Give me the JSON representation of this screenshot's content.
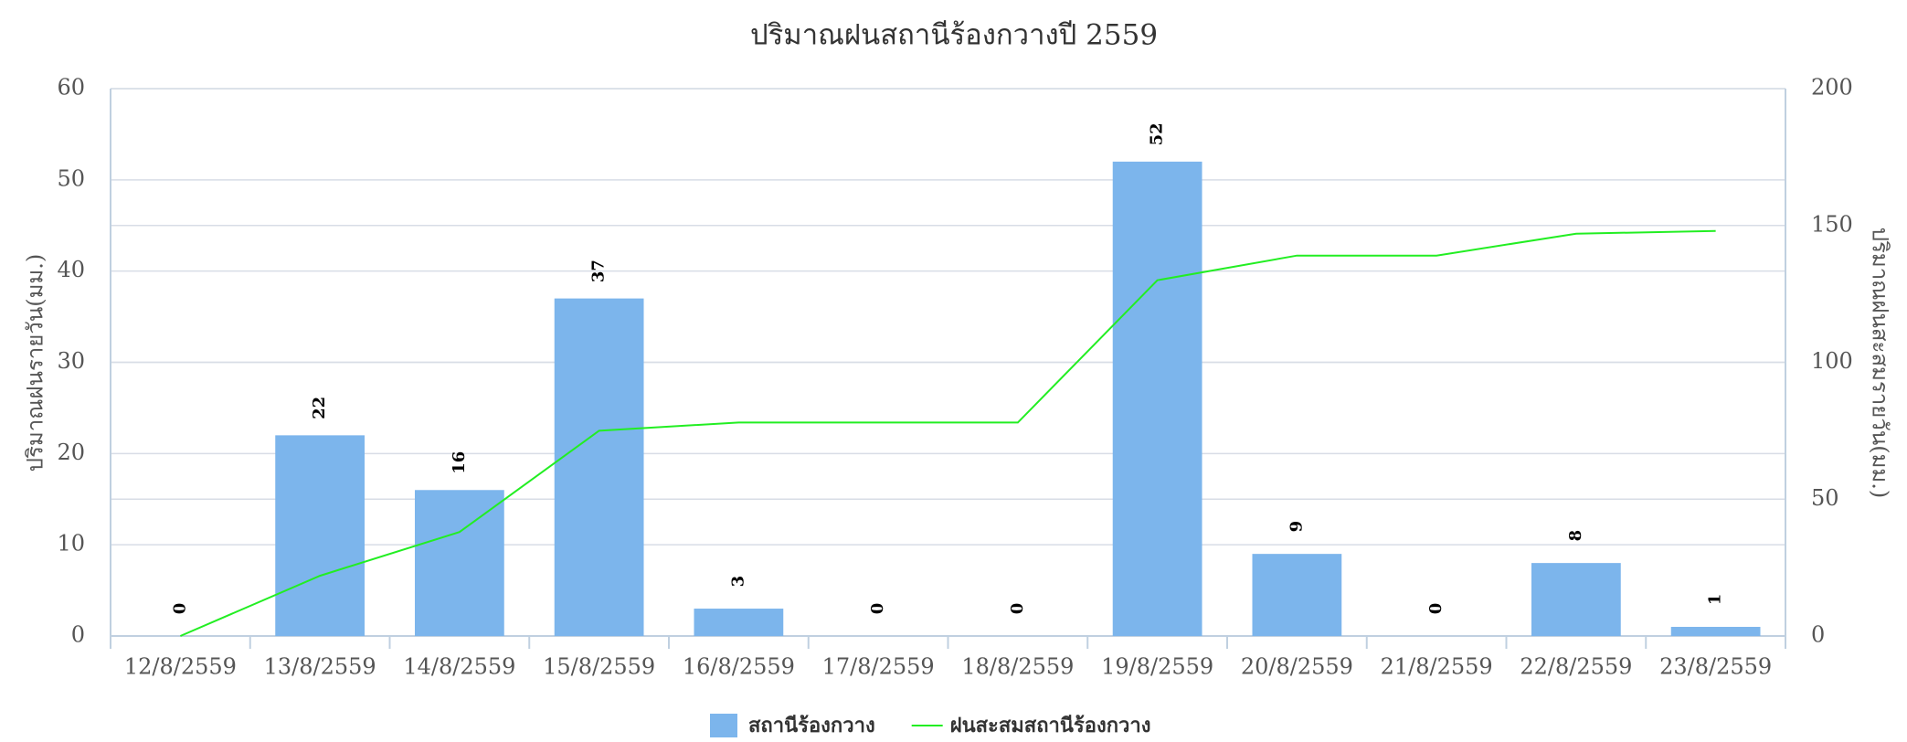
{
  "chart_data": {
    "type": "bar_line",
    "title": "ปริมาณฝนสถานีร้องกวางปี 2559",
    "y_label": "ปริมาณฝนรายวัน(มม.)",
    "y2_label": "ปริมาณฝนสะสมรายวัน(มม.)",
    "categories": [
      "12/8/2559",
      "13/8/2559",
      "14/8/2559",
      "15/8/2559",
      "16/8/2559",
      "17/8/2559",
      "18/8/2559",
      "19/8/2559",
      "20/8/2559",
      "21/8/2559",
      "22/8/2559",
      "23/8/2559"
    ],
    "series": [
      {
        "name": "สถานีร้องกวาง",
        "type": "bar",
        "color": "#7cb5ec",
        "values": [
          0,
          22,
          16,
          37,
          3,
          0,
          0,
          52,
          9,
          0,
          8,
          1
        ]
      },
      {
        "name": "ฝนสะสมสถานีร้องกวาง",
        "type": "line",
        "axis": "y2",
        "color": "#22ee22",
        "values": [
          0,
          22,
          38,
          75,
          78,
          78,
          78,
          130,
          139,
          139,
          147,
          148
        ]
      }
    ],
    "ylim": [
      0,
      60
    ],
    "yticks": [
      0,
      10,
      20,
      30,
      40,
      50,
      60
    ],
    "y2lim": [
      0,
      200
    ],
    "y2ticks": [
      0,
      50,
      100,
      150,
      200
    ],
    "grid": true,
    "legend": "bottom"
  }
}
